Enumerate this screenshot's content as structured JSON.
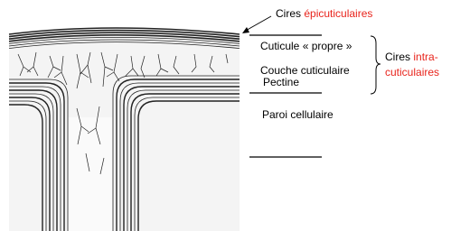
{
  "top_label": {
    "prefix": "Cires",
    "highlight": "épicuticulaires"
  },
  "layers": [
    "Cuticule « propre »",
    "Couche cuticulaire",
    "Pectine",
    "Paroi cellulaire"
  ],
  "bracket_label": {
    "prefix": "Cires",
    "highlight_1": "intra-",
    "highlight_2": "cuticulaires"
  }
}
